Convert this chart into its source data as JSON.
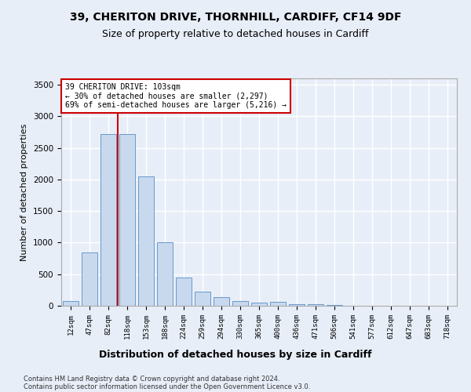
{
  "title1": "39, CHERITON DRIVE, THORNHILL, CARDIFF, CF14 9DF",
  "title2": "Size of property relative to detached houses in Cardiff",
  "xlabel": "Distribution of detached houses by size in Cardiff",
  "ylabel": "Number of detached properties",
  "categories": [
    "12sqm",
    "47sqm",
    "82sqm",
    "118sqm",
    "153sqm",
    "188sqm",
    "224sqm",
    "259sqm",
    "294sqm",
    "330sqm",
    "365sqm",
    "400sqm",
    "436sqm",
    "471sqm",
    "506sqm",
    "541sqm",
    "577sqm",
    "612sqm",
    "647sqm",
    "683sqm",
    "718sqm"
  ],
  "values": [
    70,
    840,
    2720,
    2720,
    2050,
    1000,
    450,
    220,
    140,
    75,
    55,
    60,
    30,
    20,
    8,
    5,
    4,
    4,
    3,
    3,
    3
  ],
  "bar_facecolor": "#c8d9ee",
  "bar_edgecolor": "#6699cc",
  "vline_color": "#cc0000",
  "vline_x_idx": 2.5,
  "annotation_text": "39 CHERITON DRIVE: 103sqm\n← 30% of detached houses are smaller (2,297)\n69% of semi-detached houses are larger (5,216) →",
  "ann_box_fc": "#ffffff",
  "ann_box_ec": "#cc0000",
  "ylim": [
    0,
    3600
  ],
  "yticks": [
    0,
    500,
    1000,
    1500,
    2000,
    2500,
    3000,
    3500
  ],
  "bg_color": "#e8eef8",
  "grid_color": "#ffffff",
  "footer1": "Contains HM Land Registry data © Crown copyright and database right 2024.",
  "footer2": "Contains public sector information licensed under the Open Government Licence v3.0."
}
